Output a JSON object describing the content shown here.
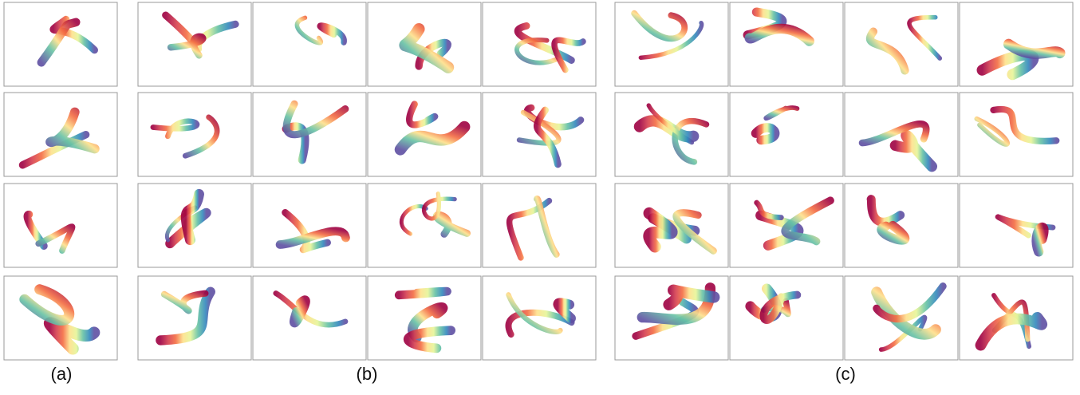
{
  "panel_labels": [
    "(a)",
    "(b)",
    "(c)"
  ]
}
